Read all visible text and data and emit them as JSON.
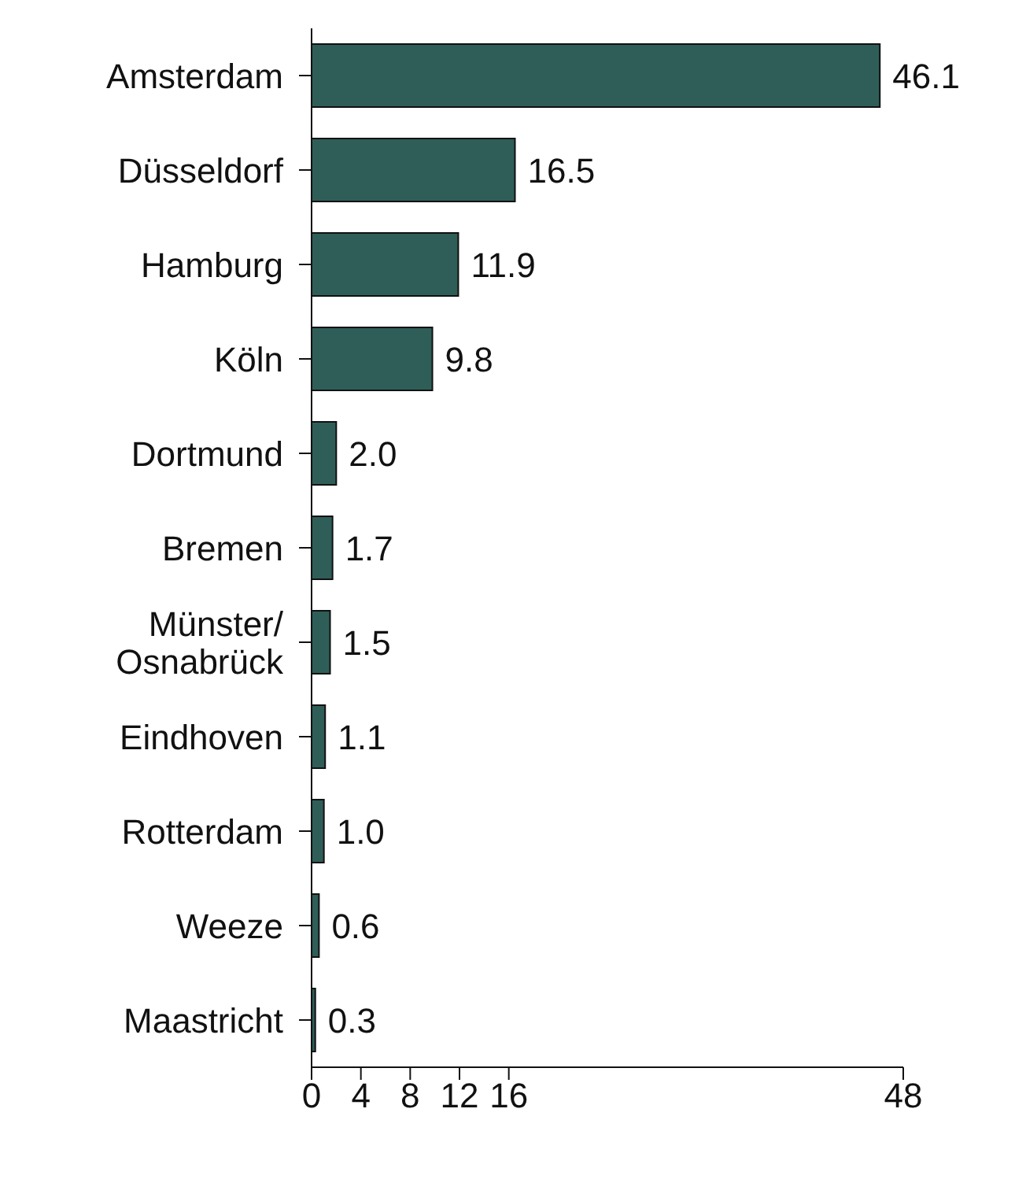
{
  "chart_data": {
    "type": "bar",
    "orientation": "horizontal",
    "categories": [
      "Amsterdam",
      "Düsseldorf",
      "Hamburg",
      "Köln",
      "Dortmund",
      "Bremen",
      "Münster/\nOsnabrück",
      "Eindhoven",
      "Rotterdam",
      "Weeze",
      "Maastricht"
    ],
    "values": [
      46.1,
      16.5,
      11.9,
      9.8,
      2.0,
      1.7,
      1.5,
      1.1,
      1.0,
      0.6,
      0.3
    ],
    "color": "#2f5e58",
    "xlim": [
      0,
      48
    ],
    "xticks": [
      0,
      4,
      8,
      12,
      16,
      48
    ],
    "value_labels": [
      "46.1",
      "16.5",
      "11.9",
      "9.8",
      "2.0",
      "1.7",
      "1.5",
      "1.1",
      "1.0",
      "0.6",
      "0.3"
    ],
    "grid": false,
    "legend": false
  }
}
